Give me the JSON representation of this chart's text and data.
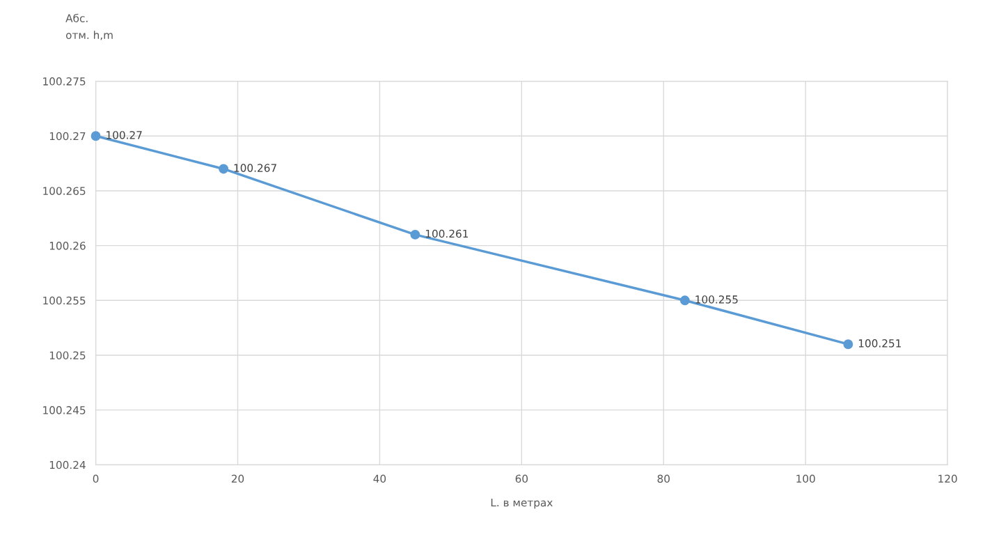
{
  "chart_data": {
    "type": "line",
    "xlabel": "L. в метрах",
    "ylabel": "Абс.\nотм. h,m",
    "x": [
      0,
      18,
      45,
      83,
      106
    ],
    "series": [
      {
        "color": "#5b9bd5",
        "values": [
          100.27,
          100.267,
          100.261,
          100.255,
          100.251
        ]
      }
    ],
    "data_labels": true,
    "marker": "circle",
    "line_style": "solid",
    "grid": true,
    "xlim": [
      0,
      120
    ],
    "xticks": [
      0,
      20,
      40,
      60,
      80,
      100,
      120
    ],
    "ylim": [
      100.24,
      100.275
    ],
    "yticks": [
      {
        "value": 100.24,
        "label": "100.24"
      },
      {
        "value": 100.245,
        "label": "100.245"
      },
      {
        "value": 100.25,
        "label": "100.25"
      },
      {
        "value": 100.255,
        "label": "100.255"
      },
      {
        "value": 100.26,
        "label": "100.26"
      },
      {
        "value": 100.265,
        "label": "100.265"
      },
      {
        "value": 100.27,
        "label": "100.27"
      },
      {
        "value": 100.275,
        "label": "100.275"
      }
    ]
  }
}
